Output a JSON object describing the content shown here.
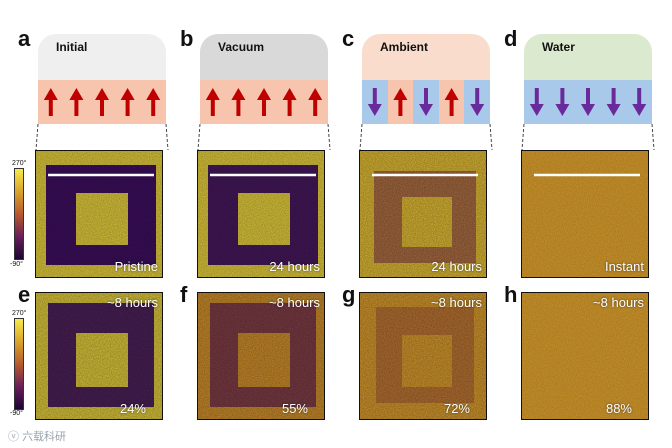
{
  "panels_top": [
    {
      "letter": "a",
      "title": "Initial",
      "label": "Pristine"
    },
    {
      "letter": "b",
      "title": "Vacuum",
      "label": "24 hours"
    },
    {
      "letter": "c",
      "title": "Ambient",
      "label": "24 hours"
    },
    {
      "letter": "d",
      "title": "Water",
      "label": "Instant"
    }
  ],
  "panels_bottom": [
    {
      "letter": "e",
      "time": "~8 hours",
      "humidity": "24%"
    },
    {
      "letter": "f",
      "time": "~8 hours",
      "humidity": "55%"
    },
    {
      "letter": "g",
      "time": "~8 hours",
      "humidity": "72%"
    },
    {
      "letter": "h",
      "time": "~8 hours",
      "humidity": "88%"
    }
  ],
  "scale": {
    "max": "270°",
    "min": "-90°"
  },
  "colors": {
    "cap_initial": "#efefef",
    "cap_vacuum": "#d9d9d9",
    "cap_ambient": "#f9dccb",
    "cap_water": "#dbe9cf",
    "band_orange": "#f7c5ad",
    "band_blue": "#a9c9ea",
    "arrow_up": "#c00000",
    "arrow_down": "#6a2a9c"
  },
  "watermark": "六载科研"
}
